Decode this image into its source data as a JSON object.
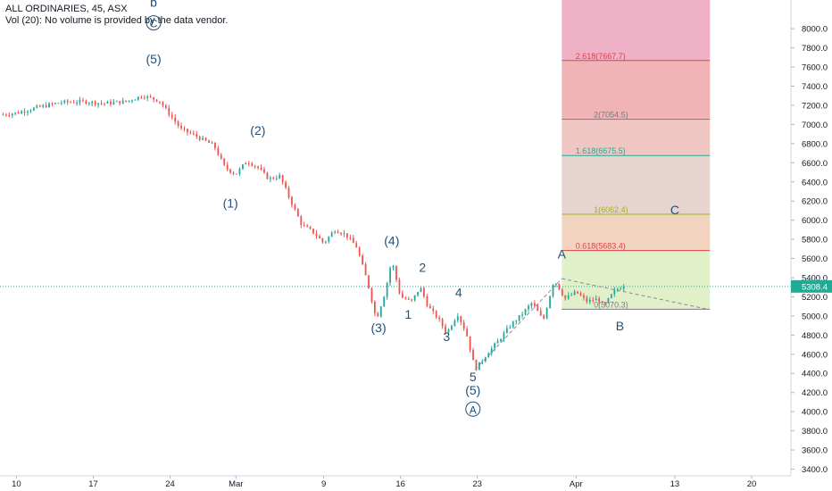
{
  "header": {
    "symbol_line": "ALL ORDINARIES, 45, ASX",
    "volume_line": "Vol (20): No volume is provided by the data vendor."
  },
  "chart_data": {
    "type": "candlestick",
    "yticks": [
      3400,
      3600,
      3800,
      4000,
      4200,
      4400,
      4600,
      4800,
      5000,
      5200,
      5400,
      5600,
      5800,
      6000,
      6200,
      6400,
      6600,
      6800,
      7000,
      7200,
      7400,
      7600,
      7800,
      8000
    ],
    "ylim": [
      3330,
      8300
    ],
    "xticks": [
      {
        "label": "10",
        "x": 0
      },
      {
        "label": "17",
        "x": 7
      },
      {
        "label": "24",
        "x": 14
      },
      {
        "label": "Mar",
        "x": 20
      },
      {
        "label": "9",
        "x": 28
      },
      {
        "label": "16",
        "x": 35
      },
      {
        "label": "23",
        "x": 42
      },
      {
        "label": "Apr",
        "x": 51
      },
      {
        "label": "13",
        "x": 60
      },
      {
        "label": "20",
        "x": 67
      }
    ],
    "xlim": [
      -1.5,
      70.5
    ],
    "last_price": {
      "label": "5308.4",
      "value": 5308.4
    },
    "price_path": [
      [
        -1.5,
        7100
      ],
      [
        0,
        7120
      ],
      [
        2,
        7180
      ],
      [
        4,
        7230
      ],
      [
        6,
        7240
      ],
      [
        8,
        7220
      ],
      [
        10,
        7240
      ],
      [
        11.5,
        7300
      ],
      [
        13,
        7250
      ],
      [
        14,
        7100
      ],
      [
        15,
        6950
      ],
      [
        16,
        6900
      ],
      [
        18,
        6780
      ],
      [
        19,
        6550
      ],
      [
        20,
        6480
      ],
      [
        21,
        6620
      ],
      [
        22,
        6550
      ],
      [
        23,
        6430
      ],
      [
        24,
        6460
      ],
      [
        25,
        6200
      ],
      [
        26,
        5950
      ],
      [
        27,
        5880
      ],
      [
        28,
        5760
      ],
      [
        29,
        5900
      ],
      [
        30,
        5850
      ],
      [
        31,
        5720
      ],
      [
        32,
        5350
      ],
      [
        32.8,
        4960
      ],
      [
        33.6,
        5250
      ],
      [
        34.2,
        5580
      ],
      [
        35,
        5200
      ],
      [
        36,
        5150
      ],
      [
        36.8,
        5300
      ],
      [
        37.5,
        5100
      ],
      [
        38.5,
        4960
      ],
      [
        39.2,
        4820
      ],
      [
        40.2,
        5020
      ],
      [
        41,
        4820
      ],
      [
        41.8,
        4440
      ],
      [
        43,
        4620
      ],
      [
        44,
        4750
      ],
      [
        45,
        4900
      ],
      [
        46,
        5010
      ],
      [
        47,
        5140
      ],
      [
        48,
        4950
      ],
      [
        49,
        5380
      ],
      [
        50,
        5180
      ],
      [
        51,
        5250
      ],
      [
        52,
        5150
      ],
      [
        53,
        5180
      ],
      [
        53.5,
        5100
      ],
      [
        54.5,
        5260
      ],
      [
        55.5,
        5330
      ]
    ],
    "waves": [
      {
        "label": "b",
        "x": 12.5,
        "value": 8230
      },
      {
        "label": "C",
        "x": 12.5,
        "value": 8015,
        "circled": true
      },
      {
        "label": "(5)",
        "x": 12.5,
        "value": 7640
      },
      {
        "label": "(2)",
        "x": 22,
        "value": 6890
      },
      {
        "label": "(1)",
        "x": 19.5,
        "value": 6130
      },
      {
        "label": "(4)",
        "x": 34.2,
        "value": 5740
      },
      {
        "label": "2",
        "x": 37,
        "value": 5460
      },
      {
        "label": "1",
        "x": 35.7,
        "value": 4970
      },
      {
        "label": "(3)",
        "x": 33,
        "value": 4830
      },
      {
        "label": "4",
        "x": 40.3,
        "value": 5200
      },
      {
        "label": "3",
        "x": 39.2,
        "value": 4740
      },
      {
        "label": "5",
        "x": 41.6,
        "value": 4320
      },
      {
        "label": "(5)",
        "x": 41.6,
        "value": 4180
      },
      {
        "label": "A",
        "x": 41.6,
        "value": 3980,
        "circled": true
      },
      {
        "label": "A",
        "x": 49.7,
        "value": 5600
      },
      {
        "label": "B",
        "x": 55,
        "value": 4850
      },
      {
        "label": "C",
        "x": 60,
        "value": 6060
      }
    ],
    "fib_extension": {
      "x_start": 49.7,
      "x_end": 63.2,
      "levels": [
        {
          "label": "0(5070.3)",
          "value": 5070.3,
          "color": "#787b86"
        },
        {
          "label": "0.618(5683.4)",
          "value": 5683.4,
          "color": "#e0414a"
        },
        {
          "label": "1(6062.4)",
          "value": 6062.4,
          "color": "#9bb321"
        },
        {
          "label": "1.618(6675.5)",
          "value": 6675.5,
          "color": "#22ab94"
        },
        {
          "label": "2(7054.5)",
          "value": 7054.5,
          "color": "#787b86"
        },
        {
          "label": "2.618(7667.7)",
          "value": 7667.7,
          "color": "#e0414a"
        }
      ],
      "bands": [
        {
          "from": 5070.3,
          "to": 5683.4,
          "color": "#e2f0c9"
        },
        {
          "from": 5683.4,
          "to": 6062.4,
          "color": "#f2d3bf"
        },
        {
          "from": 6062.4,
          "to": 6675.5,
          "color": "#e8d4cf"
        },
        {
          "from": 6675.5,
          "to": 7054.5,
          "color": "#f1c7c3"
        },
        {
          "from": 7054.5,
          "to": 7667.7,
          "color": "#f0b4b7"
        },
        {
          "from": 7667.7,
          "to": 8300,
          "color": "#efb1c6"
        }
      ]
    },
    "colors": {
      "up": "#26a69a",
      "down": "#ef5350",
      "last_price": "#22ab94",
      "wave": "#1e4f7a"
    }
  }
}
